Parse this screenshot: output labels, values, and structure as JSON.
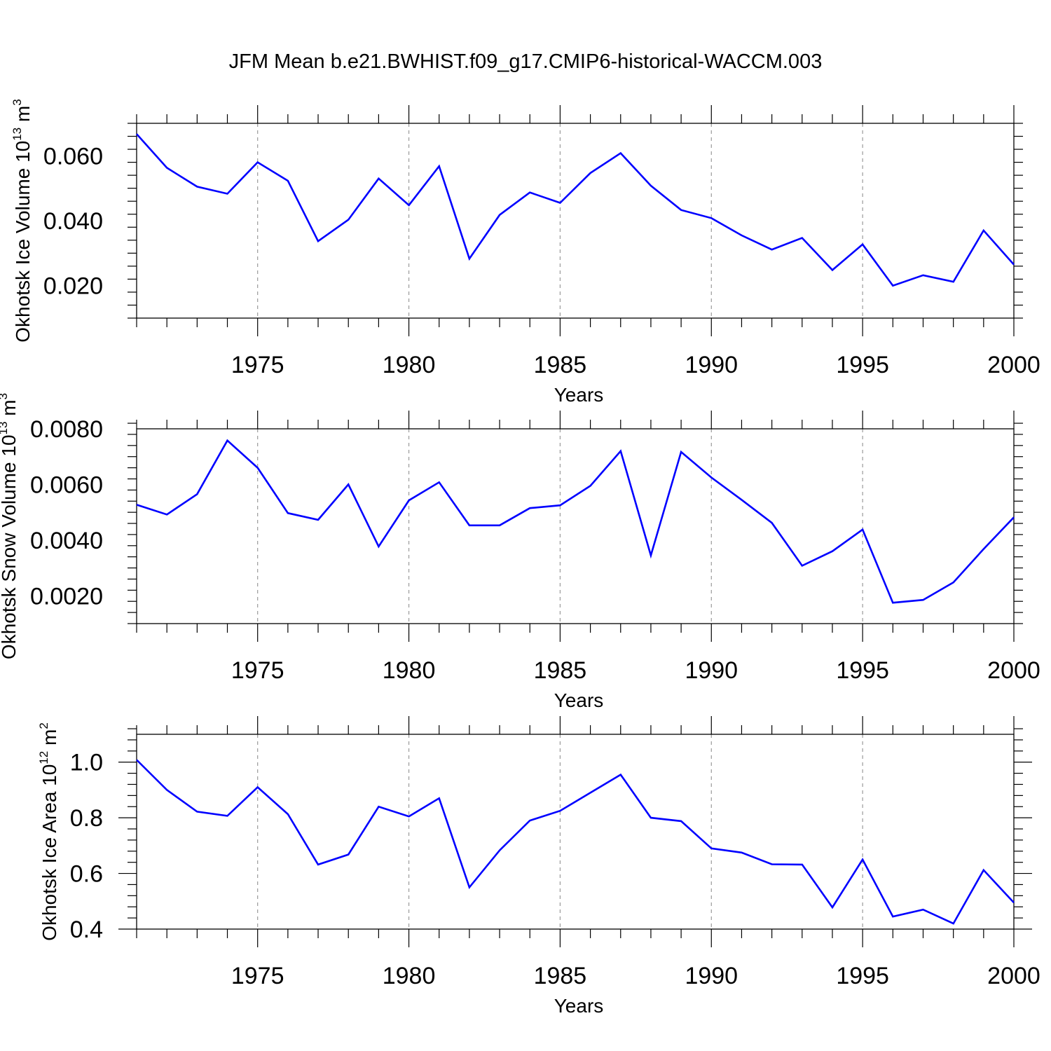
{
  "title": "JFM Mean b.e21.BWHIST.f09_g17.CMIP6-historical-WACCM.003",
  "colors": {
    "line": "#0000ff",
    "axis": "#000000",
    "grid": "#999999"
  },
  "chart_data": [
    {
      "type": "line",
      "xlabel": "Years",
      "ylabel": {
        "main": "Okhotsk Ice Volume 10",
        "exp": "13",
        "unit": " m",
        "unit_exp": "3"
      },
      "xlim": [
        1971,
        2000
      ],
      "ylim": [
        0.01,
        0.07
      ],
      "yticks": [
        0.02,
        0.04,
        0.06
      ],
      "ytick_labels": [
        "0.020",
        "0.040",
        "0.060"
      ],
      "xticks": [
        1975,
        1980,
        1985,
        1990,
        1995,
        2000
      ],
      "xtick_labels": [
        "1975",
        "1980",
        "1985",
        "1990",
        "1995",
        "2000"
      ],
      "x": [
        1971,
        1972,
        1973,
        1974,
        1975,
        1976,
        1977,
        1978,
        1979,
        1980,
        1981,
        1982,
        1983,
        1984,
        1985,
        1986,
        1987,
        1988,
        1989,
        1990,
        1991,
        1992,
        1993,
        1994,
        1995,
        1996,
        1997,
        1998,
        1999,
        2000
      ],
      "values": [
        0.0667,
        0.0563,
        0.0505,
        0.0483,
        0.058,
        0.0523,
        0.0337,
        0.0403,
        0.053,
        0.0448,
        0.0568,
        0.0283,
        0.0418,
        0.0487,
        0.0455,
        0.0547,
        0.0608,
        0.0508,
        0.0433,
        0.0408,
        0.0355,
        0.0311,
        0.0347,
        0.0248,
        0.0327,
        0.02,
        0.0232,
        0.0212,
        0.037,
        0.0265
      ]
    },
    {
      "type": "line",
      "xlabel": "Years",
      "ylabel": {
        "main": "Okhotsk Snow Volume 10",
        "exp": "13",
        "unit": " m",
        "unit_exp": "3"
      },
      "xlim": [
        1971,
        2000
      ],
      "ylim": [
        0.001,
        0.008
      ],
      "yticks": [
        0.002,
        0.004,
        0.006,
        0.008
      ],
      "ytick_labels": [
        "0.0020",
        "0.0040",
        "0.0060",
        "0.0080"
      ],
      "xticks": [
        1975,
        1980,
        1985,
        1990,
        1995,
        2000
      ],
      "xtick_labels": [
        "1975",
        "1980",
        "1985",
        "1990",
        "1995",
        "2000"
      ],
      "x": [
        1971,
        1972,
        1973,
        1974,
        1975,
        1976,
        1977,
        1978,
        1979,
        1980,
        1981,
        1982,
        1983,
        1984,
        1985,
        1986,
        1987,
        1988,
        1989,
        1990,
        1991,
        1992,
        1993,
        1994,
        1995,
        1996,
        1997,
        1998,
        1999,
        2000
      ],
      "values": [
        0.00527,
        0.00492,
        0.00565,
        0.00758,
        0.0066,
        0.00497,
        0.00473,
        0.006,
        0.00377,
        0.00543,
        0.00608,
        0.00453,
        0.00453,
        0.00515,
        0.00525,
        0.00595,
        0.0072,
        0.00345,
        0.00717,
        0.00625,
        0.00545,
        0.00462,
        0.00308,
        0.0036,
        0.00438,
        0.00175,
        0.00185,
        0.00248,
        0.00368,
        0.00482
      ]
    },
    {
      "type": "line",
      "xlabel": "Years",
      "ylabel": {
        "main": "Okhotsk Ice Area 10",
        "exp": "12",
        "unit": " m",
        "unit_exp": "2"
      },
      "xlim": [
        1971,
        2000
      ],
      "ylim": [
        0.4,
        1.1
      ],
      "yticks": [
        0.4,
        0.6,
        0.8,
        1.0
      ],
      "ytick_labels": [
        "0.4",
        "0.6",
        "0.8",
        "1.0"
      ],
      "xticks": [
        1975,
        1980,
        1985,
        1990,
        1995,
        2000
      ],
      "xtick_labels": [
        "1975",
        "1980",
        "1985",
        "1990",
        "1995",
        "2000"
      ],
      "x": [
        1971,
        1972,
        1973,
        1974,
        1975,
        1976,
        1977,
        1978,
        1979,
        1980,
        1981,
        1982,
        1983,
        1984,
        1985,
        1986,
        1987,
        1988,
        1989,
        1990,
        1991,
        1992,
        1993,
        1994,
        1995,
        1996,
        1997,
        1998,
        1999,
        2000
      ],
      "values": [
        1.008,
        0.9,
        0.822,
        0.807,
        0.91,
        0.813,
        0.632,
        0.668,
        0.84,
        0.805,
        0.87,
        0.55,
        0.683,
        0.79,
        0.825,
        0.89,
        0.955,
        0.8,
        0.788,
        0.69,
        0.675,
        0.633,
        0.632,
        0.478,
        0.65,
        0.445,
        0.47,
        0.42,
        0.612,
        0.495
      ]
    }
  ]
}
